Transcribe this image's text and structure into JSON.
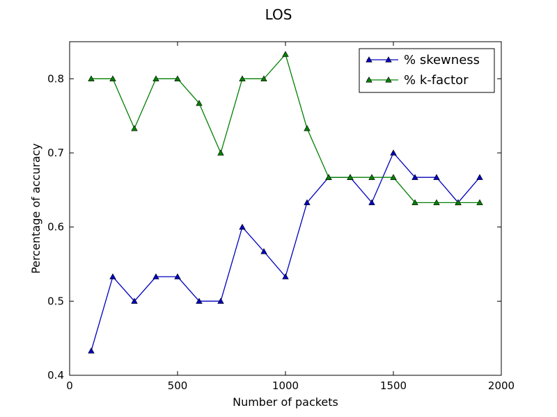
{
  "chart_data": {
    "type": "line",
    "title": "LOS",
    "xlabel": "Number of packets",
    "ylabel": "Percentage of accuracy",
    "xlim": [
      0,
      2000
    ],
    "ylim": [
      0.4,
      0.85
    ],
    "x_ticks": [
      0,
      500,
      1000,
      1500,
      2000
    ],
    "x_tick_labels": [
      "0",
      "500",
      "1000",
      "1500",
      "2000"
    ],
    "y_ticks": [
      0.4,
      0.5,
      0.6,
      0.7,
      0.8
    ],
    "y_tick_labels": [
      "0.4",
      "0.5",
      "0.6",
      "0.7",
      "0.8"
    ],
    "grid": false,
    "legend_position": "upper right",
    "x": [
      100,
      200,
      300,
      400,
      500,
      600,
      700,
      800,
      900,
      1000,
      1100,
      1200,
      1300,
      1400,
      1500,
      1600,
      1700,
      1800,
      1900
    ],
    "series": [
      {
        "name": "% skewness",
        "color": "#0000bf",
        "marker": "triangle-up",
        "values": [
          0.433,
          0.533,
          0.5,
          0.533,
          0.533,
          0.5,
          0.5,
          0.6,
          0.567,
          0.533,
          0.633,
          0.667,
          0.667,
          0.633,
          0.7,
          0.667,
          0.667,
          0.633,
          0.667
        ]
      },
      {
        "name": "% k-factor",
        "color": "#007f00",
        "marker": "triangle-up",
        "values": [
          0.8,
          0.8,
          0.733,
          0.8,
          0.8,
          0.767,
          0.7,
          0.8,
          0.8,
          0.833,
          0.733,
          0.667,
          0.667,
          0.667,
          0.667,
          0.633,
          0.633,
          0.633,
          0.633
        ]
      }
    ]
  }
}
